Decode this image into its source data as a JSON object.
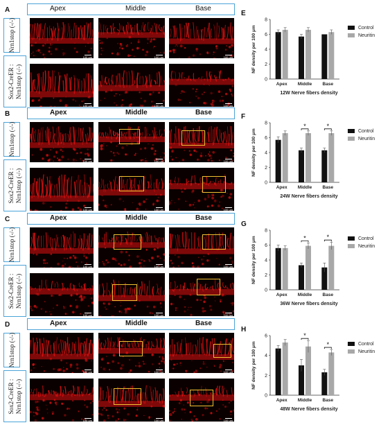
{
  "panels": [
    {
      "letter": "A",
      "chart_letter": "E"
    },
    {
      "letter": "B",
      "chart_letter": "F"
    },
    {
      "letter": "C",
      "chart_letter": "G"
    },
    {
      "letter": "D",
      "chart_letter": "H"
    }
  ],
  "column_headers": [
    "Apex",
    "Middle",
    "Base"
  ],
  "row_labels": {
    "top": "Nrn1stop (-/-)",
    "bottom": "Sox2-CreER : Nrn1stop (-/-)"
  },
  "scale_bar_label": "100 μm",
  "colors": {
    "control": "#111111",
    "neuritin": "#a8a8a8",
    "header_border": "#4aa3d8",
    "roi": "#f2c232",
    "stain": "#e01010"
  },
  "chart_data": [
    {
      "type": "bar",
      "title": "12W Nerve fibers density",
      "ylabel": "NF density per 100 μm",
      "categories": [
        "Apex",
        "Middle",
        "Base"
      ],
      "ylim": [
        0,
        8
      ],
      "yticks": [
        0,
        2,
        4,
        6,
        8
      ],
      "series": [
        {
          "name": "Control",
          "values": [
            6.3,
            5.7,
            6.0
          ],
          "errors": [
            0.3,
            0.3,
            0.0
          ]
        },
        {
          "name": "Neuritin",
          "values": [
            6.6,
            6.6,
            6.3
          ],
          "errors": [
            0.3,
            0.3,
            0.3
          ]
        }
      ],
      "significance": [
        false,
        false,
        false
      ],
      "legend": "right"
    },
    {
      "type": "bar",
      "title": "24W Nerve fibers density",
      "ylabel": "NF density per 100 μm",
      "categories": [
        "Apex",
        "Middle",
        "Base"
      ],
      "ylim": [
        0,
        8
      ],
      "yticks": [
        0,
        2,
        4,
        6,
        8
      ],
      "series": [
        {
          "name": "Control",
          "values": [
            5.7,
            4.3,
            4.3
          ],
          "errors": [
            0.4,
            0.3,
            0.3
          ]
        },
        {
          "name": "Neuritin",
          "values": [
            6.6,
            6.6,
            6.6
          ],
          "errors": [
            0.3,
            0.3,
            0.3
          ]
        }
      ],
      "significance": [
        false,
        true,
        true
      ],
      "sig_label": "*",
      "legend": "right"
    },
    {
      "type": "bar",
      "title": "36W Nerve fibers density",
      "ylabel": "NF density per 100 μm",
      "categories": [
        "Apex",
        "Middle",
        "Base"
      ],
      "ylim": [
        0,
        8
      ],
      "yticks": [
        0,
        2,
        4,
        6,
        8
      ],
      "series": [
        {
          "name": "Control",
          "values": [
            5.6,
            3.3,
            3.0
          ],
          "errors": [
            0.4,
            0.3,
            0.6
          ]
        },
        {
          "name": "Neuritin",
          "values": [
            5.6,
            5.9,
            5.9
          ],
          "errors": [
            0.3,
            0.4,
            0.5
          ]
        }
      ],
      "significance": [
        false,
        true,
        true
      ],
      "sig_label": "*",
      "legend": "right"
    },
    {
      "type": "bar",
      "title": "48W Nerve fibers density",
      "ylabel": "NF density per 100 μm",
      "categories": [
        "Apex",
        "Middle",
        "Base"
      ],
      "ylim": [
        0,
        6
      ],
      "yticks": [
        0,
        2,
        4,
        6
      ],
      "series": [
        {
          "name": "Control",
          "values": [
            4.7,
            3.0,
            2.3
          ],
          "errors": [
            0.3,
            0.6,
            0.3
          ]
        },
        {
          "name": "Neuritin",
          "values": [
            5.3,
            4.9,
            4.3
          ],
          "errors": [
            0.3,
            0.6,
            0.3
          ]
        }
      ],
      "significance": [
        false,
        true,
        true
      ],
      "sig_label": "*",
      "legend": "right"
    }
  ]
}
